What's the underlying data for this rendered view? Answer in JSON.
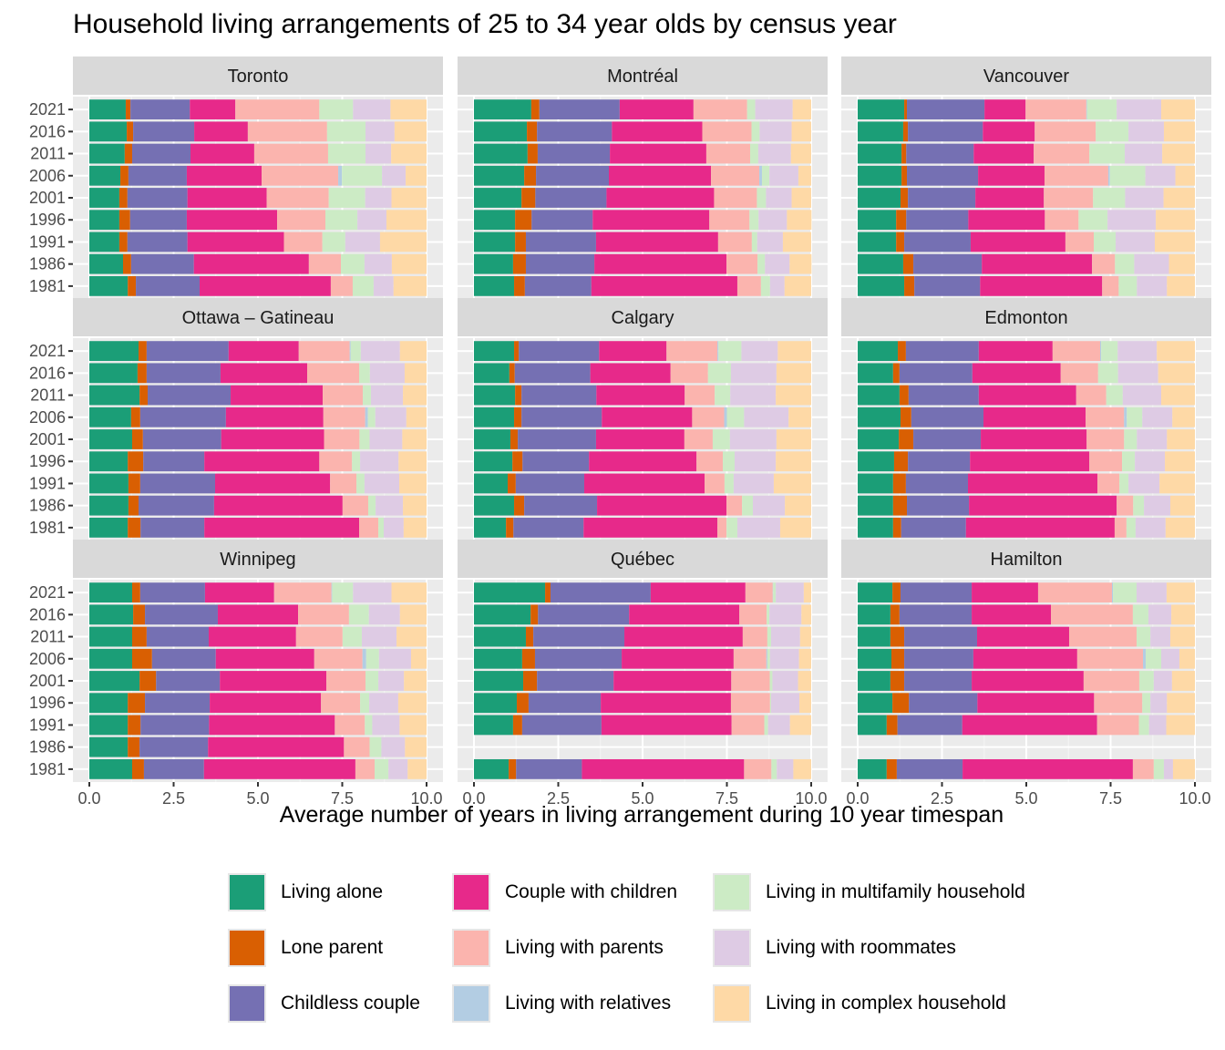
{
  "chart_data": {
    "type": "bar",
    "orientation": "horizontal",
    "stacked": true,
    "title": "Household living arrangements of 25 to 34 year olds by census year",
    "xlabel": "Average number of years in living arrangement during 10 year timespan",
    "ylabel": "",
    "xlim": [
      0,
      10
    ],
    "x_ticks": [
      "0.0",
      "2.5",
      "5.0",
      "7.5",
      "10.0"
    ],
    "grid": true,
    "legend_position": "bottom",
    "categories": [
      "2021",
      "2016",
      "2011",
      "2006",
      "2001",
      "1996",
      "1991",
      "1986",
      "1981"
    ],
    "series_names": [
      "Living alone",
      "Lone parent",
      "Childless couple",
      "Couple with children",
      "Living with parents",
      "Living with relatives",
      "Living in multifamily household",
      "Living with roommates",
      "Living in complex household"
    ],
    "series_colors": [
      "#1B9E77",
      "#D95F02",
      "#7570B3",
      "#E7298A",
      "#FBB4AE",
      "#B3CDE3",
      "#CCEBC5",
      "#DECBE4",
      "#FED9A6"
    ],
    "panels": [
      {
        "name": "Toronto",
        "rows": [
          [
            1.08,
            0.14,
            1.76,
            1.35,
            2.49,
            0.0,
            1.0,
            1.11,
            1.07
          ],
          [
            1.11,
            0.19,
            1.81,
            1.59,
            2.35,
            0.0,
            1.14,
            0.86,
            0.95
          ],
          [
            1.05,
            0.22,
            1.73,
            1.89,
            2.19,
            0.0,
            1.11,
            0.76,
            1.05
          ],
          [
            0.92,
            0.24,
            1.73,
            2.22,
            2.27,
            0.11,
            1.19,
            0.7,
            0.62
          ],
          [
            0.89,
            0.24,
            1.78,
            2.35,
            1.84,
            0.0,
            1.08,
            0.78,
            1.04
          ],
          [
            0.89,
            0.32,
            1.68,
            2.68,
            1.43,
            0.0,
            0.95,
            0.86,
            1.19
          ],
          [
            0.89,
            0.24,
            1.78,
            2.86,
            1.14,
            0.0,
            0.68,
            1.03,
            1.38
          ],
          [
            1.0,
            0.24,
            1.86,
            3.41,
            0.95,
            0.0,
            0.7,
            0.81,
            1.03
          ],
          [
            1.14,
            0.24,
            1.89,
            3.89,
            0.65,
            0.0,
            0.62,
            0.59,
            0.98
          ]
        ]
      },
      {
        "name": "Montréal",
        "rows": [
          [
            1.7,
            0.24,
            2.38,
            2.19,
            1.59,
            0.0,
            0.24,
            1.11,
            0.55
          ],
          [
            1.57,
            0.3,
            2.22,
            2.68,
            1.46,
            0.0,
            0.24,
            0.95,
            0.58
          ],
          [
            1.59,
            0.3,
            2.14,
            2.86,
            1.3,
            0.0,
            0.24,
            0.97,
            0.6
          ],
          [
            1.49,
            0.35,
            2.16,
            3.03,
            1.43,
            0.08,
            0.22,
            0.86,
            0.38
          ],
          [
            1.41,
            0.41,
            2.11,
            3.19,
            1.27,
            0.0,
            0.27,
            0.76,
            0.58
          ],
          [
            1.22,
            0.49,
            1.81,
            3.46,
            1.19,
            0.0,
            0.27,
            0.84,
            0.73
          ],
          [
            1.22,
            0.32,
            2.08,
            3.62,
            1.0,
            0.0,
            0.16,
            0.76,
            0.84
          ],
          [
            1.16,
            0.38,
            2.03,
            3.92,
            0.92,
            0.0,
            0.22,
            0.73,
            0.65
          ],
          [
            1.19,
            0.32,
            1.97,
            4.33,
            0.7,
            0.0,
            0.27,
            0.43,
            0.79
          ]
        ]
      },
      {
        "name": "Vancouver",
        "rows": [
          [
            1.38,
            0.08,
            2.3,
            1.22,
            1.8,
            0.02,
            0.88,
            1.32,
            1.0
          ],
          [
            1.35,
            0.14,
            2.22,
            1.54,
            1.81,
            0.0,
            0.97,
            1.05,
            0.92
          ],
          [
            1.3,
            0.14,
            2.0,
            1.78,
            1.65,
            0.0,
            1.05,
            1.11,
            0.97
          ],
          [
            1.3,
            0.16,
            2.11,
            1.97,
            1.89,
            0.05,
            1.05,
            0.89,
            0.58
          ],
          [
            1.27,
            0.22,
            2.0,
            2.03,
            1.46,
            0.0,
            0.95,
            1.14,
            0.93
          ],
          [
            1.14,
            0.3,
            1.84,
            2.27,
            1.0,
            0.0,
            0.86,
            1.43,
            1.16
          ],
          [
            1.14,
            0.24,
            1.97,
            2.81,
            0.84,
            0.0,
            0.65,
            1.16,
            1.19
          ],
          [
            1.35,
            0.3,
            2.03,
            3.27,
            0.68,
            0.0,
            0.57,
            1.03,
            0.77
          ],
          [
            1.38,
            0.3,
            1.95,
            3.62,
            0.49,
            0.0,
            0.54,
            0.89,
            0.83
          ]
        ]
      },
      {
        "name": "Ottawa – Gatineau",
        "rows": [
          [
            1.46,
            0.24,
            2.43,
            2.08,
            1.51,
            0.03,
            0.3,
            1.16,
            0.79
          ],
          [
            1.43,
            0.27,
            2.19,
            2.57,
            1.54,
            0.0,
            0.32,
            1.03,
            0.65
          ],
          [
            1.49,
            0.24,
            2.46,
            2.73,
            1.19,
            0.0,
            0.24,
            0.95,
            0.7
          ],
          [
            1.24,
            0.27,
            2.54,
            2.89,
            1.24,
            0.08,
            0.22,
            0.92,
            0.6
          ],
          [
            1.27,
            0.32,
            2.32,
            3.05,
            1.05,
            0.0,
            0.3,
            0.97,
            0.72
          ],
          [
            1.14,
            0.46,
            1.81,
            3.41,
            0.97,
            0.0,
            0.24,
            1.14,
            0.83
          ],
          [
            1.16,
            0.35,
            2.22,
            3.41,
            0.78,
            0.0,
            0.24,
            1.03,
            0.81
          ],
          [
            1.16,
            0.3,
            2.24,
            3.81,
            0.76,
            0.0,
            0.22,
            0.81,
            0.7
          ],
          [
            1.14,
            0.38,
            1.89,
            4.59,
            0.57,
            0.0,
            0.16,
            0.59,
            0.68
          ]
        ]
      },
      {
        "name": "Calgary",
        "rows": [
          [
            1.19,
            0.14,
            2.38,
            2.0,
            1.51,
            0.03,
            0.68,
            1.08,
            0.99
          ],
          [
            1.05,
            0.16,
            2.24,
            2.38,
            1.11,
            0.0,
            0.68,
            1.35,
            1.03
          ],
          [
            1.22,
            0.19,
            2.22,
            2.62,
            0.89,
            0.0,
            0.46,
            1.35,
            1.05
          ],
          [
            1.19,
            0.22,
            2.38,
            2.68,
            0.95,
            0.08,
            0.51,
            1.32,
            0.67
          ],
          [
            1.08,
            0.22,
            2.32,
            2.62,
            0.84,
            0.0,
            0.51,
            1.38,
            1.03
          ],
          [
            1.14,
            0.3,
            1.97,
            3.19,
            0.78,
            0.0,
            0.35,
            1.22,
            1.05
          ],
          [
            1.0,
            0.24,
            2.03,
            3.57,
            0.59,
            0.0,
            0.27,
            1.19,
            1.11
          ],
          [
            1.19,
            0.3,
            2.16,
            3.84,
            0.46,
            0.0,
            0.32,
            0.95,
            0.78
          ],
          [
            0.95,
            0.22,
            2.08,
            3.97,
            0.27,
            0.0,
            0.32,
            1.27,
            0.92
          ]
        ]
      },
      {
        "name": "Edmonton",
        "rows": [
          [
            1.19,
            0.24,
            2.16,
            2.19,
            1.41,
            0.03,
            0.49,
            1.16,
            1.13
          ],
          [
            1.05,
            0.19,
            2.16,
            2.62,
            1.11,
            0.0,
            0.59,
            1.19,
            1.09
          ],
          [
            1.24,
            0.27,
            2.08,
            2.89,
            0.89,
            0.0,
            0.49,
            1.14,
            1.0
          ],
          [
            1.27,
            0.32,
            2.14,
            3.03,
            1.14,
            0.08,
            0.46,
            0.89,
            0.67
          ],
          [
            1.22,
            0.43,
            2.0,
            3.14,
            1.11,
            0.0,
            0.38,
            0.89,
            0.83
          ],
          [
            1.08,
            0.41,
            1.84,
            3.54,
            0.97,
            0.0,
            0.38,
            0.89,
            0.89
          ],
          [
            1.05,
            0.38,
            1.84,
            3.84,
            0.65,
            0.0,
            0.27,
            0.92,
            1.05
          ],
          [
            1.05,
            0.41,
            1.84,
            4.38,
            0.49,
            0.0,
            0.32,
            0.78,
            0.73
          ],
          [
            1.05,
            0.24,
            1.92,
            4.41,
            0.35,
            0.0,
            0.27,
            0.89,
            0.87
          ]
        ]
      },
      {
        "name": "Winnipeg",
        "rows": [
          [
            1.27,
            0.24,
            1.92,
            2.05,
            1.7,
            0.02,
            0.62,
            1.14,
            1.04
          ],
          [
            1.3,
            0.35,
            2.16,
            2.38,
            1.51,
            0.0,
            0.59,
            0.92,
            0.79
          ],
          [
            1.27,
            0.43,
            1.84,
            2.59,
            1.38,
            0.0,
            0.57,
            1.03,
            0.89
          ],
          [
            1.27,
            0.59,
            1.89,
            2.92,
            1.43,
            0.11,
            0.38,
            0.95,
            0.46
          ],
          [
            1.49,
            0.49,
            1.89,
            3.16,
            1.16,
            0.0,
            0.38,
            0.76,
            0.67
          ],
          [
            1.14,
            0.51,
            1.92,
            3.3,
            1.16,
            0.0,
            0.27,
            0.86,
            0.84
          ],
          [
            1.14,
            0.38,
            2.03,
            3.73,
            0.89,
            0.0,
            0.22,
            0.81,
            0.8
          ],
          [
            1.14,
            0.35,
            2.03,
            4.03,
            0.76,
            0.0,
            0.35,
            0.7,
            0.64
          ],
          [
            1.27,
            0.35,
            1.78,
            4.49,
            0.57,
            0.0,
            0.41,
            0.57,
            0.56
          ]
        ]
      },
      {
        "name": "Québec",
        "rows": [
          [
            2.11,
            0.16,
            2.97,
            2.81,
            0.81,
            0.01,
            0.08,
            0.83,
            0.22
          ],
          [
            1.68,
            0.22,
            2.7,
            3.27,
            0.81,
            0.0,
            0.08,
            0.95,
            0.29
          ],
          [
            1.54,
            0.22,
            2.7,
            3.51,
            0.73,
            0.0,
            0.11,
            0.86,
            0.33
          ],
          [
            1.43,
            0.38,
            2.57,
            3.32,
            0.97,
            0.03,
            0.08,
            0.86,
            0.36
          ],
          [
            1.46,
            0.41,
            2.27,
            3.49,
            1.14,
            0.0,
            0.08,
            0.76,
            0.39
          ],
          [
            1.27,
            0.35,
            2.14,
            3.86,
            1.16,
            0.0,
            0.03,
            0.84,
            0.35
          ],
          [
            1.16,
            0.27,
            2.35,
            3.86,
            0.97,
            0.0,
            0.11,
            0.65,
            0.63
          ],
          [
            null,
            null,
            null,
            null,
            null,
            null,
            null,
            null,
            null
          ],
          [
            1.03,
            0.22,
            1.95,
            4.81,
            0.81,
            0.0,
            0.16,
            0.49,
            0.53
          ]
        ]
      },
      {
        "name": "Hamilton",
        "rows": [
          [
            1.03,
            0.24,
            2.11,
            1.97,
            2.19,
            0.03,
            0.7,
            0.89,
            0.84
          ],
          [
            0.97,
            0.27,
            2.14,
            2.35,
            2.43,
            0.0,
            0.46,
            0.68,
            0.7
          ],
          [
            0.97,
            0.41,
            2.16,
            2.73,
            2.0,
            0.0,
            0.41,
            0.59,
            0.73
          ],
          [
            1.0,
            0.38,
            2.05,
            3.08,
            1.95,
            0.08,
            0.46,
            0.54,
            0.46
          ],
          [
            0.97,
            0.41,
            2.0,
            3.32,
            1.65,
            0.0,
            0.43,
            0.54,
            0.68
          ],
          [
            1.03,
            0.49,
            2.03,
            3.46,
            1.43,
            0.0,
            0.24,
            0.49,
            0.83
          ],
          [
            0.86,
            0.32,
            1.92,
            4.0,
            1.24,
            0.0,
            0.3,
            0.51,
            0.85
          ],
          [
            null,
            null,
            null,
            null,
            null,
            null,
            null,
            null,
            null
          ],
          [
            0.86,
            0.3,
            1.95,
            5.05,
            0.62,
            0.0,
            0.3,
            0.27,
            0.65
          ]
        ]
      }
    ]
  }
}
